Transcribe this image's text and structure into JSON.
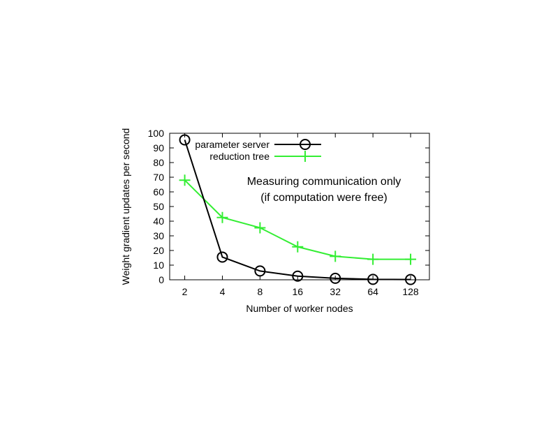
{
  "chart_data": {
    "type": "line",
    "xlabel": "Number of worker nodes",
    "ylabel": "Weight gradient updates per second",
    "x": [
      2,
      4,
      8,
      16,
      32,
      64,
      128
    ],
    "x_tick_labels": [
      "2",
      "4",
      "8",
      "16",
      "32",
      "64",
      "128"
    ],
    "x_scale": "log2",
    "ylim": [
      0,
      100
    ],
    "y_ticks": [
      0,
      10,
      20,
      30,
      40,
      50,
      60,
      70,
      80,
      90,
      100
    ],
    "y_tick_labels": [
      "0",
      "10",
      "20",
      "30",
      "40",
      "50",
      "60",
      "70",
      "80",
      "90",
      "100"
    ],
    "grid": false,
    "legend": "top-left",
    "series": [
      {
        "name": "parameter server",
        "values": [
          95.5,
          15.5,
          6,
          2.5,
          1,
          0.3,
          0.2
        ],
        "color": "#000000",
        "marker": "circle"
      },
      {
        "name": "reduction tree",
        "values": [
          68,
          42.5,
          35.5,
          22.5,
          16,
          14,
          14
        ],
        "color": "#33ee33",
        "marker": "plus"
      }
    ],
    "annotation": [
      "Measuring communication only",
      "(if computation were free)"
    ]
  }
}
